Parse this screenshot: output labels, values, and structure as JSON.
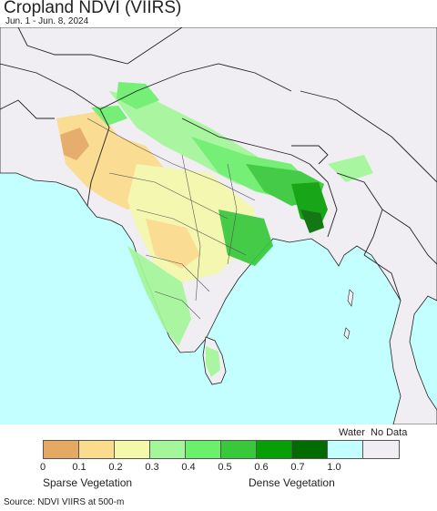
{
  "title": "Cropland NDVI (VIIRS)",
  "subtitle": "Jun. 1 - Jun. 8, 2024",
  "legend": {
    "colors": [
      "#e6a963",
      "#fbdb8c",
      "#f4f8aa",
      "#a3f69a",
      "#6bf06b",
      "#37c939",
      "#06a006",
      "#016d01",
      "#c3ffff",
      "#f0eef2"
    ],
    "ticks": [
      "0",
      "0.1",
      "0.2",
      "0.3",
      "0.4",
      "0.5",
      "0.6",
      "0.7",
      "1.0"
    ],
    "water_label": "Water",
    "nodata_label": "No Data",
    "sparse_label": "Sparse Vegetation",
    "dense_label": "Dense Vegetation"
  },
  "source": "Source: NDVI VIIRS at 500-m"
}
